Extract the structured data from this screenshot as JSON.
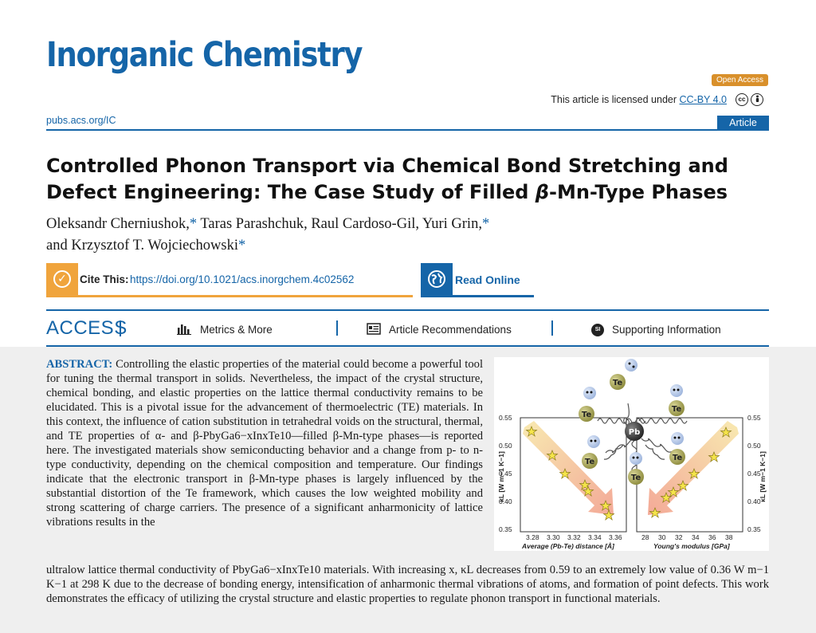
{
  "journal": {
    "name": "Inorganic Chemistry",
    "url": "pubs.acs.org/IC",
    "article_type": "Article"
  },
  "license": {
    "open_access": "Open Access",
    "text": "This article is licensed under ",
    "link": "CC-BY 4.0"
  },
  "article": {
    "title_part1": "Controlled Phonon Transport via Chemical Bond Stretching and Defect Engineering: The Case Study of Filled ",
    "title_beta": "β",
    "title_part2": "-Mn-Type Phases",
    "authors": [
      {
        "name": "Oleksandr Cherniushok,",
        "star": "*"
      },
      {
        "name": " Taras Parashchuk, Raul Cardoso-Gil, Yuri Grin,",
        "star": "*"
      },
      {
        "name": " and Krzysztof T. Wojciechowski",
        "star": "*"
      }
    ]
  },
  "cite": {
    "label": "Cite This:",
    "doi": "https://doi.org/10.1021/acs.inorgchem.4c02562"
  },
  "read_online": "Read Online",
  "access_bar": {
    "access": "ACCESS",
    "metrics": "Metrics & More",
    "recommendations": "Article Recommendations",
    "si_badge": "SI",
    "supporting": "Supporting Information"
  },
  "abstract": {
    "label": "ABSTRACT:",
    "text1": "Controlling the elastic properties of the material could become a powerful tool for tuning the thermal transport in solids. Nevertheless, the impact of the crystal structure, chemical bonding, and elastic properties on the lattice thermal conductivity remains to be elucidated. This is a pivotal issue for the advancement of thermoelectric (TE) materials. In this context, the influence of cation substitution in tetrahedral voids on the structural, thermal, and TE properties of α- and β-PbyGa6−xInxTe10—filled β-Mn-type phases—is reported here. The investigated materials show semiconducting behavior and a change from p- to n-type conductivity, depending on the chemical composition and temperature. Our findings indicate that the electronic transport in β-Mn-type phases is largely influenced by the substantial distortion of the Te framework, which causes the low weighted mobility and strong scattering of charge carriers. The presence of a significant anharmonicity of lattice vibrations results in the",
    "text2": "ultralow lattice thermal conductivity of PbyGa6−xInxTe10 materials. With increasing x, κL decreases from 0.59 to an extremely low value of 0.36 W m−1 K−1 at 298 K due to the decrease of bonding energy, intensification of anharmonic thermal vibrations of atoms, and formation of point defects. This work demonstrates the efficacy of utilizing the crystal structure and elastic properties to regulate phonon transport in functional materials."
  },
  "toc_graphic": {
    "left_axis_label": "κL [W m−1 K−1]",
    "right_axis_label": "κL [W m−1 K−1]",
    "y_ticks": [
      "0.55",
      "0.50",
      "0.45",
      "0.40",
      "0.35"
    ],
    "left_x_ticks": [
      "3.28",
      "3.30",
      "3.32",
      "3.34",
      "3.36"
    ],
    "left_x_label": "Average (Pb-Te) distance [Å]",
    "right_x_ticks": [
      "28",
      "30",
      "32",
      "34",
      "36",
      "38"
    ],
    "right_x_label": "Young's modulus [GPa]",
    "atom_te": "Te",
    "atom_pb": "Pb"
  }
}
